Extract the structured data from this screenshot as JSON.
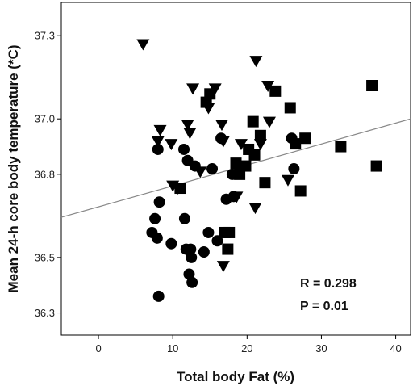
{
  "chart_data": {
    "type": "scatter",
    "title": "",
    "xlabel": "Total body Fat (%)",
    "ylabel": "Mean 24-h core body temperature (*C)",
    "xlim": [
      -5,
      42
    ],
    "ylim": [
      36.22,
      37.42
    ],
    "xticks": [
      0,
      10,
      20,
      30,
      40
    ],
    "yticks": [
      36.3,
      36.5,
      36.8,
      37.0,
      37.3
    ],
    "ytick_labels": [
      "36.3",
      "36.5",
      "36.8",
      "37.0",
      "37.3"
    ],
    "grid": false,
    "legend": "none",
    "marker_color": "#000000",
    "fit_color": "#888888",
    "fit_line": {
      "x": [
        -5,
        42
      ],
      "y": [
        36.645,
        37.0
      ]
    },
    "annotations": [
      "R = 0.298",
      "P = 0.01"
    ],
    "series": [
      {
        "marker": "triangle-down",
        "points": [
          [
            6,
            37.27
          ],
          [
            8,
            36.92
          ],
          [
            8.3,
            36.96
          ],
          [
            9.8,
            36.91
          ],
          [
            10,
            36.76
          ],
          [
            10.7,
            36.75
          ],
          [
            12,
            36.98
          ],
          [
            12.3,
            36.95
          ],
          [
            12.7,
            37.11
          ],
          [
            13.7,
            36.81
          ],
          [
            14.8,
            37.04
          ],
          [
            15.7,
            37.11
          ],
          [
            16.6,
            36.98
          ],
          [
            16.8,
            36.92
          ],
          [
            16.8,
            36.47
          ],
          [
            18.6,
            36.72
          ],
          [
            19.2,
            36.91
          ],
          [
            21.1,
            36.68
          ],
          [
            21.2,
            37.21
          ],
          [
            21.8,
            36.91
          ],
          [
            22.8,
            37.12
          ],
          [
            23,
            36.99
          ],
          [
            25.5,
            36.78
          ]
        ]
      },
      {
        "marker": "square",
        "points": [
          [
            11,
            36.75
          ],
          [
            14.5,
            37.06
          ],
          [
            15,
            37.09
          ],
          [
            17,
            36.59
          ],
          [
            17.4,
            36.53
          ],
          [
            17.6,
            36.59
          ],
          [
            18.5,
            36.84
          ],
          [
            19,
            36.8
          ],
          [
            19.8,
            36.83
          ],
          [
            20.2,
            36.89
          ],
          [
            20.8,
            36.99
          ],
          [
            21,
            36.87
          ],
          [
            21.8,
            36.94
          ],
          [
            22.4,
            36.77
          ],
          [
            23.8,
            37.1
          ],
          [
            25.8,
            37.04
          ],
          [
            26.5,
            36.91
          ],
          [
            27.2,
            36.74
          ],
          [
            27.8,
            36.93
          ],
          [
            32.6,
            36.9
          ],
          [
            36.8,
            37.12
          ],
          [
            37.4,
            36.83
          ]
        ]
      },
      {
        "marker": "circle",
        "points": [
          [
            7.2,
            36.59
          ],
          [
            7.6,
            36.64
          ],
          [
            7.9,
            36.57
          ],
          [
            8,
            36.89
          ],
          [
            8.1,
            36.36
          ],
          [
            8.2,
            36.7
          ],
          [
            9.8,
            36.55
          ],
          [
            11.5,
            36.89
          ],
          [
            11.6,
            36.64
          ],
          [
            11.8,
            36.53
          ],
          [
            12,
            36.85
          ],
          [
            12.2,
            36.44
          ],
          [
            12.4,
            36.53
          ],
          [
            12.5,
            36.5
          ],
          [
            12.6,
            36.41
          ],
          [
            13,
            36.83
          ],
          [
            14.2,
            36.52
          ],
          [
            14.8,
            36.59
          ],
          [
            15.3,
            36.82
          ],
          [
            16,
            36.56
          ],
          [
            16.5,
            36.93
          ],
          [
            17.2,
            36.71
          ],
          [
            18,
            36.8
          ],
          [
            18.2,
            36.72
          ],
          [
            26,
            36.93
          ],
          [
            26.3,
            36.82
          ]
        ]
      }
    ]
  }
}
